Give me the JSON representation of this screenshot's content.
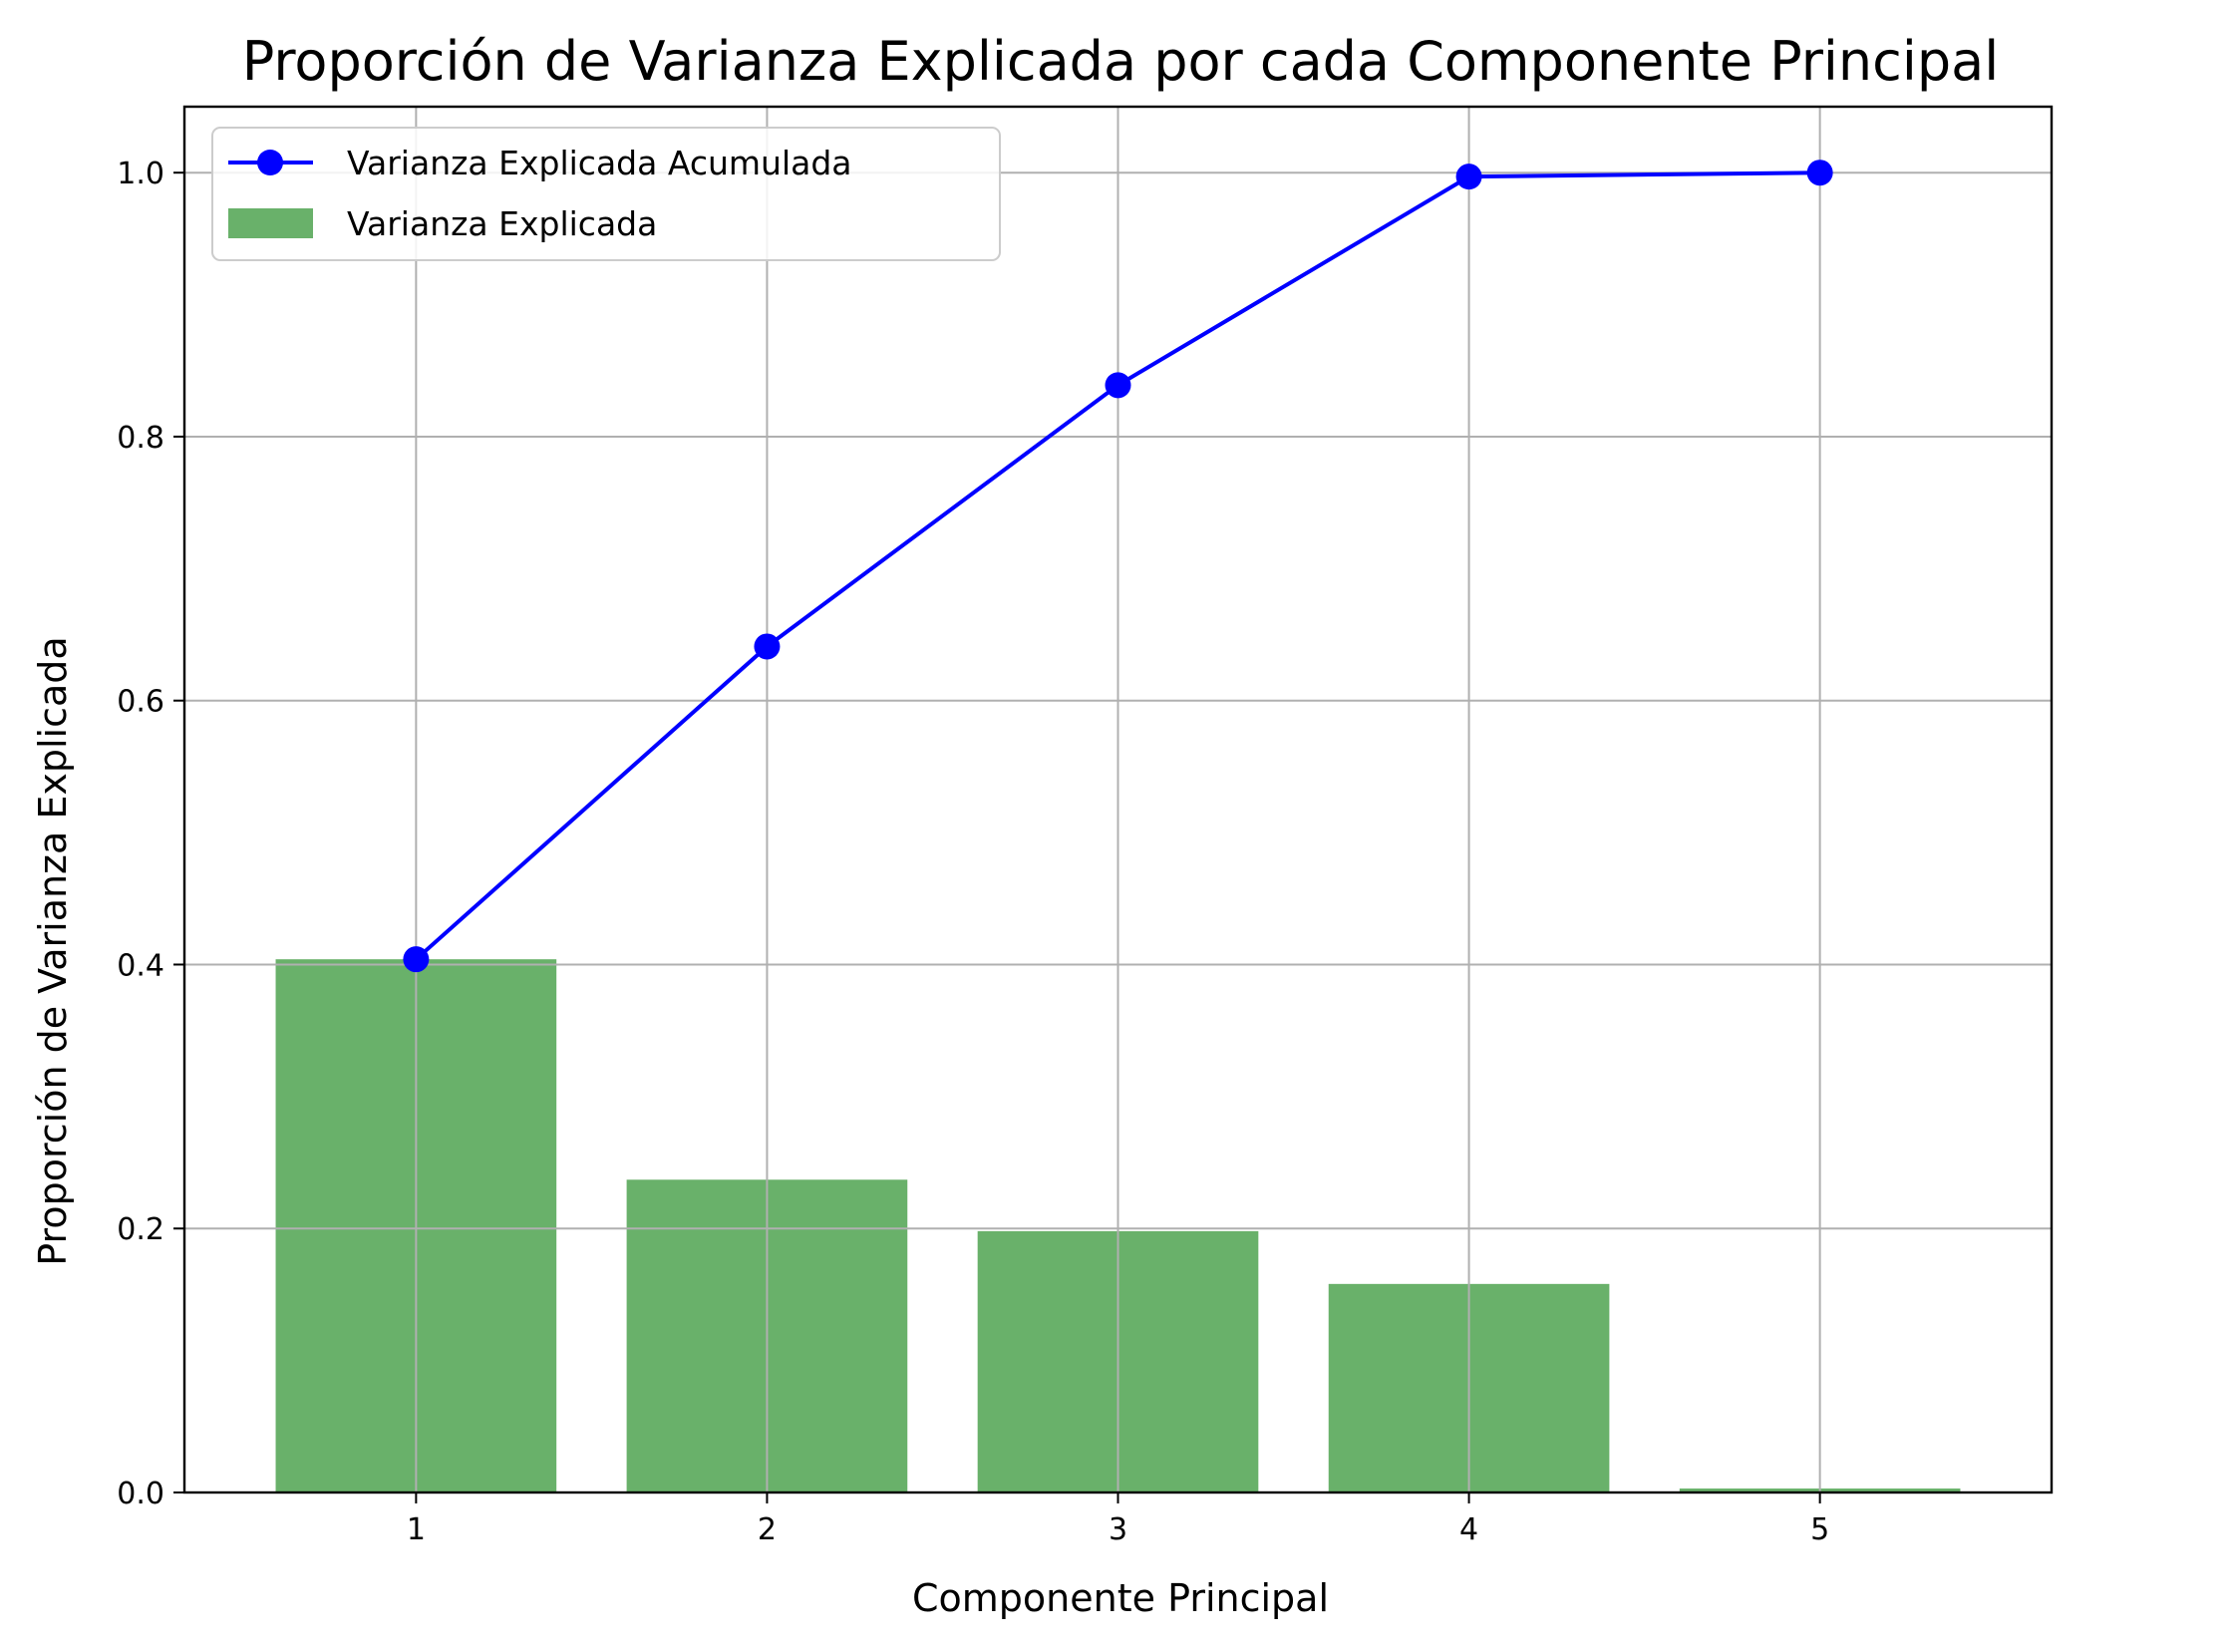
{
  "chart_data": {
    "type": "bar",
    "title": "Proporción de Varianza Explicada por cada Componente Principal",
    "xlabel": "Componente Principal",
    "ylabel": "Proporción de Varianza Explicada",
    "categories": [
      "1",
      "2",
      "3",
      "4",
      "5"
    ],
    "x_ticks": [
      "1",
      "2",
      "3",
      "4",
      "5"
    ],
    "y_ticks": [
      "0.0",
      "0.2",
      "0.4",
      "0.6",
      "0.8",
      "1.0"
    ],
    "xlim": [
      0.34,
      5.66
    ],
    "ylim": [
      0.0,
      1.05
    ],
    "grid": true,
    "legend_position": "upper-left",
    "series": [
      {
        "name": "Varianza Explicada Acumulada",
        "type": "line",
        "marker": "circle",
        "color": "#0000ff",
        "values": [
          0.404,
          0.641,
          0.839,
          0.997,
          1.0
        ]
      },
      {
        "name": "Varianza Explicada",
        "type": "bar",
        "color": "#69b16a",
        "values": [
          0.404,
          0.237,
          0.198,
          0.158,
          0.003
        ]
      }
    ]
  }
}
